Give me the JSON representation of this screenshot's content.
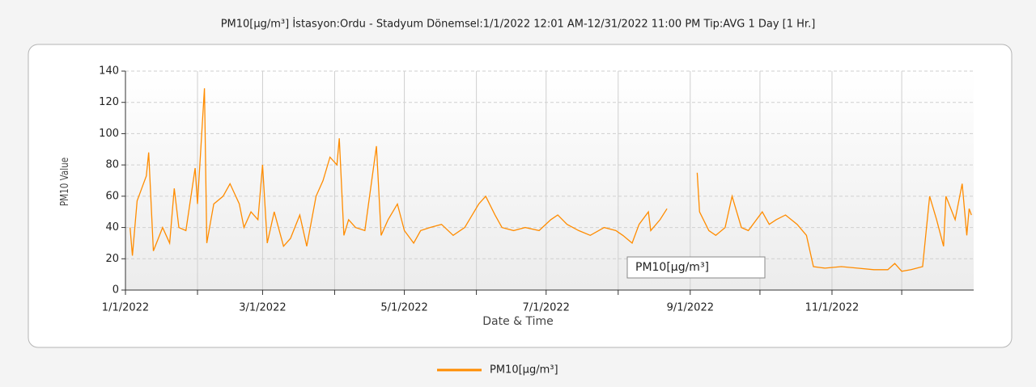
{
  "chart_data": {
    "type": "line",
    "title": "PM10[µg/m³] İstasyon:Ordu - Stadyum  Dönemsel:1/1/2022 12:01 AM-12/31/2022 11:00 PM  Tip:AVG 1 Day [1 Hr.]",
    "xlabel": "Date & Time",
    "ylabel": "PM10 Value",
    "x": [
      "2022-01-03",
      "2022-01-04",
      "2022-01-06",
      "2022-01-08",
      "2022-01-10",
      "2022-01-11",
      "2022-01-13",
      "2022-01-17",
      "2022-01-20",
      "2022-01-22",
      "2022-01-24",
      "2022-01-27",
      "2022-01-31",
      "2022-02-01",
      "2022-02-04",
      "2022-02-05",
      "2022-02-08",
      "2022-02-12",
      "2022-02-15",
      "2022-02-19",
      "2022-02-21",
      "2022-02-24",
      "2022-02-27",
      "2022-03-01",
      "2022-03-03",
      "2022-03-06",
      "2022-03-10",
      "2022-03-13",
      "2022-03-17",
      "2022-03-20",
      "2022-03-24",
      "2022-03-27",
      "2022-03-30",
      "2022-04-02",
      "2022-04-03",
      "2022-04-05",
      "2022-04-07",
      "2022-04-10",
      "2022-04-14",
      "2022-04-19",
      "2022-04-21",
      "2022-04-24",
      "2022-04-28",
      "2022-05-01",
      "2022-05-05",
      "2022-05-08",
      "2022-05-12",
      "2022-05-17",
      "2022-05-22",
      "2022-05-27",
      "2022-06-02",
      "2022-06-05",
      "2022-06-09",
      "2022-06-12",
      "2022-06-17",
      "2022-06-22",
      "2022-06-28",
      "2022-07-03",
      "2022-07-06",
      "2022-07-10",
      "2022-07-15",
      "2022-07-20",
      "2022-07-26",
      "2022-07-31",
      "2022-08-03",
      "2022-08-07",
      "2022-08-10",
      "2022-08-14",
      "2022-08-15",
      "2022-08-19",
      "2022-08-22",
      "2022-08-25",
      "2022-08-30",
      "2022-09-01",
      "2022-09-04",
      "2022-09-05",
      "2022-09-09",
      "2022-09-12",
      "2022-09-16",
      "2022-09-19",
      "2022-09-23",
      "2022-09-26",
      "2022-10-02",
      "2022-10-05",
      "2022-10-08",
      "2022-10-12",
      "2022-10-17",
      "2022-10-21",
      "2022-10-24",
      "2022-10-29",
      "2022-11-05",
      "2022-11-12",
      "2022-11-19",
      "2022-11-25",
      "2022-11-28",
      "2022-12-01",
      "2022-12-05",
      "2022-12-10",
      "2022-12-13",
      "2022-12-16",
      "2022-12-19",
      "2022-12-20",
      "2022-12-24",
      "2022-12-27",
      "2022-12-29",
      "2022-12-30",
      "2022-12-31"
    ],
    "series": [
      {
        "name": "PM10[µg/m³]",
        "color": "#ff8c00",
        "values": [
          40,
          22,
          57,
          65,
          73,
          88,
          25,
          40,
          30,
          65,
          40,
          38,
          78,
          55,
          129,
          30,
          55,
          60,
          68,
          55,
          40,
          50,
          45,
          80,
          30,
          50,
          28,
          33,
          48,
          28,
          60,
          70,
          85,
          80,
          97,
          35,
          45,
          40,
          38,
          92,
          35,
          45,
          55,
          38,
          30,
          38,
          40,
          42,
          35,
          40,
          55,
          60,
          48,
          40,
          38,
          40,
          38,
          45,
          48,
          42,
          38,
          35,
          40,
          38,
          35,
          30,
          42,
          50,
          38,
          45,
          52,
          null,
          55,
          null,
          75,
          50,
          38,
          35,
          40,
          60,
          40,
          38,
          50,
          42,
          45,
          48,
          42,
          35,
          15,
          14,
          15,
          14,
          13,
          13,
          17,
          12,
          13,
          15,
          60,
          45,
          28,
          60,
          45,
          68,
          35,
          52,
          48
        ]
      }
    ],
    "xlim": [
      "2022-01-01",
      "2022-12-31"
    ],
    "xticks": [
      {
        "value": "2022-01-01",
        "label": "1/1/2022"
      },
      {
        "value": "2022-02-01",
        "label": null
      },
      {
        "value": "2022-03-01",
        "label": "3/1/2022"
      },
      {
        "value": "2022-04-01",
        "label": null
      },
      {
        "value": "2022-05-01",
        "label": "5/1/2022"
      },
      {
        "value": "2022-06-01",
        "label": null
      },
      {
        "value": "2022-07-01",
        "label": "7/1/2022"
      },
      {
        "value": "2022-08-01",
        "label": null
      },
      {
        "value": "2022-09-01",
        "label": "9/1/2022"
      },
      {
        "value": "2022-10-01",
        "label": null
      },
      {
        "value": "2022-11-01",
        "label": "11/1/2022"
      },
      {
        "value": "2022-12-01",
        "label": null
      }
    ],
    "ylim": [
      0,
      140
    ],
    "yticks": [
      0,
      20,
      40,
      60,
      80,
      100,
      120,
      140
    ],
    "grid": true,
    "legend": "bottom"
  }
}
